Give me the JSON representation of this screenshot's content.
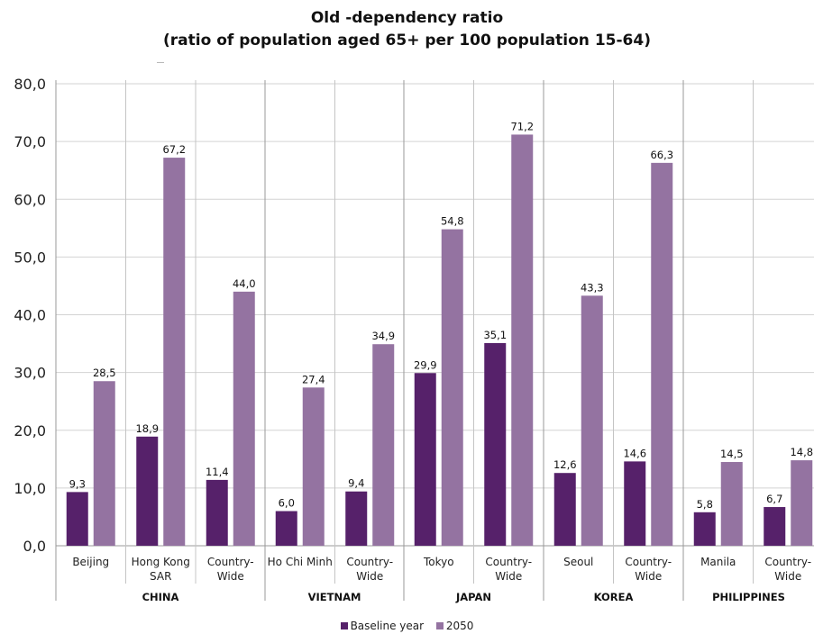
{
  "chart_data": {
    "type": "bar",
    "title": "Old -dependency ratio",
    "subtitle": "(ratio of population aged 65+ per 100 population 15-64)",
    "ylim": [
      0,
      80
    ],
    "yticks": [
      "0,0",
      "10,0",
      "20,0",
      "30,0",
      "40,0",
      "50,0",
      "60,0",
      "70,0",
      "80,0"
    ],
    "grid": true,
    "legend_position": "bottom",
    "groups": [
      {
        "name": "CHINA",
        "categories": [
          [
            "Beijing"
          ],
          [
            "Hong Kong",
            "SAR"
          ],
          [
            "Country-",
            "Wide"
          ]
        ]
      },
      {
        "name": "VIETNAM",
        "categories": [
          [
            "Ho Chi Minh"
          ],
          [
            "Country-",
            "Wide"
          ]
        ]
      },
      {
        "name": "JAPAN",
        "categories": [
          [
            "Tokyo"
          ],
          [
            "Country-",
            "Wide"
          ]
        ]
      },
      {
        "name": "KOREA",
        "categories": [
          [
            "Seoul"
          ],
          [
            "Country-",
            "Wide"
          ]
        ]
      },
      {
        "name": "PHILIPPINES",
        "categories": [
          [
            "Manila"
          ],
          [
            "Country-",
            "Wide"
          ]
        ]
      }
    ],
    "series": [
      {
        "name": "Baseline year",
        "color": "#56216a",
        "values": [
          9.3,
          18.9,
          11.4,
          6.0,
          9.4,
          29.9,
          35.1,
          12.6,
          14.6,
          5.8,
          6.7
        ],
        "labels": [
          "9,3",
          "18,9",
          "11,4",
          "6,0",
          "9,4",
          "29,9",
          "35,1",
          "12,6",
          "14,6",
          "5,8",
          "6,7"
        ]
      },
      {
        "name": "2050",
        "color": "#9473a1",
        "values": [
          28.5,
          67.2,
          44.0,
          27.4,
          34.9,
          54.8,
          71.2,
          43.3,
          66.3,
          14.5,
          14.8
        ],
        "labels": [
          "28,5",
          "67,2",
          "44,0",
          "27,4",
          "34,9",
          "54,8",
          "71,2",
          "43,3",
          "66,3",
          "14,5",
          "14,8"
        ]
      }
    ]
  }
}
